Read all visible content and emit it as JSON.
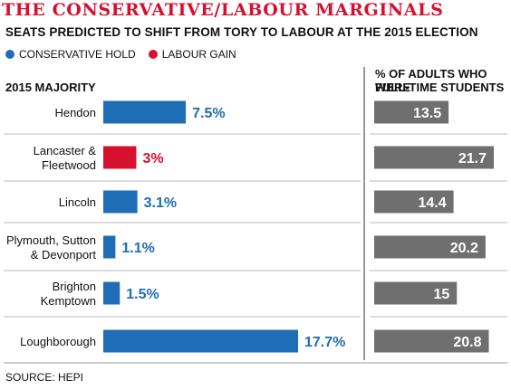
{
  "title": "THE CONSERVATIVE/LABOUR MARGINALS",
  "subtitle": "SEATS PREDICTED TO SHIFT FROM TORY TO LABOUR AT THE 2015 ELECTION",
  "legend": [
    {
      "label": "CONSERVATIVE HOLD",
      "color": "#1f6db4"
    },
    {
      "label": "LABOUR GAIN",
      "color": "#d6102f"
    }
  ],
  "left_header": "2015 MAJORITY",
  "right_header_line1": "% OF ADULTS WHO WERE",
  "right_header_line2": "FULL-TIME STUDENTS",
  "source": "SOURCE: HEPI",
  "chart_data": [
    {
      "type": "bar",
      "orientation": "horizontal",
      "title": "2015 MAJORITY",
      "categories": [
        [
          "Hendon"
        ],
        [
          "Lancaster &",
          "Fleetwood"
        ],
        [
          "Lincoln"
        ],
        [
          "Plymouth, Sutton",
          "& Devonport"
        ],
        [
          "Brighton",
          "Kemptown"
        ],
        [
          "Loughborough"
        ]
      ],
      "values": [
        7.5,
        3,
        3.1,
        1.1,
        1.5,
        17.7
      ],
      "value_labels": [
        "7.5%",
        "3%",
        "3.1%",
        "1.1%",
        "1.5%",
        "17.7%"
      ],
      "groups": [
        "CONSERVATIVE HOLD",
        "LABOUR GAIN",
        "CONSERVATIVE HOLD",
        "CONSERVATIVE HOLD",
        "CONSERVATIVE HOLD",
        "CONSERVATIVE HOLD"
      ],
      "colors": [
        "#1f6db4",
        "#d6102f",
        "#1f6db4",
        "#1f6db4",
        "#1f6db4",
        "#1f6db4"
      ],
      "label_color_blue": "#1f6db4",
      "label_color_red": "#d6102f",
      "xlim": [
        0,
        17.7
      ]
    },
    {
      "type": "bar",
      "orientation": "horizontal",
      "title": "% OF ADULTS WHO WERE FULL-TIME STUDENTS",
      "categories": [
        "Hendon",
        "Lancaster & Fleetwood",
        "Lincoln",
        "Plymouth, Sutton & Devonport",
        "Brighton Kemptown",
        "Loughborough"
      ],
      "values": [
        13.5,
        21.7,
        14.4,
        20.2,
        15,
        20.8
      ],
      "value_labels": [
        "13.5",
        "21.7",
        "14.4",
        "20.2",
        "15",
        "20.8"
      ],
      "color": "#6f6f6f",
      "xlim": [
        0,
        21.7
      ]
    }
  ]
}
